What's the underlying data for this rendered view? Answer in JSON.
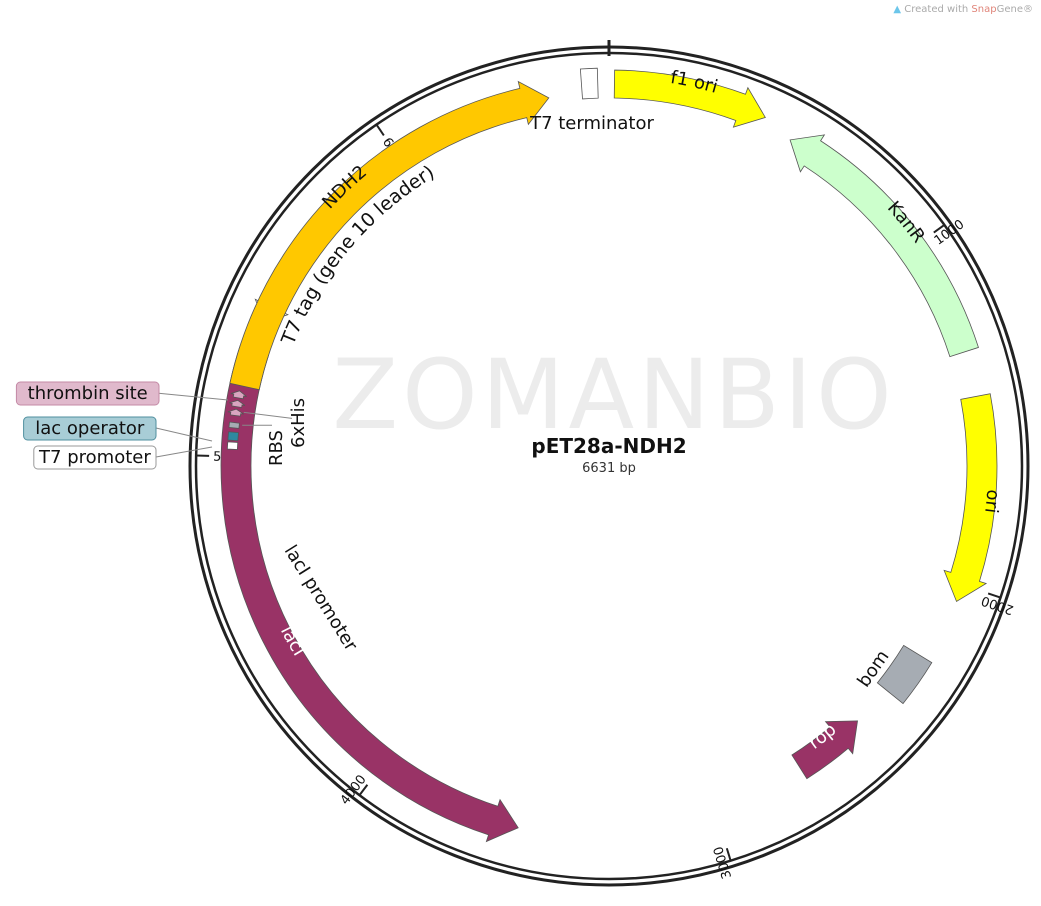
{
  "credit": {
    "prefix": "Created with ",
    "brand_a": "Snap",
    "brand_b": "Gene",
    "mark": "®",
    "icon": "snapgene-logo-icon"
  },
  "watermark": "ZOMANBIO",
  "plasmid": {
    "name": "pET28a-NDH2",
    "length_label": "6631 bp",
    "length_bp": 6631
  },
  "ticks": [
    {
      "bp": 1000,
      "label": "1000"
    },
    {
      "bp": 2000,
      "label": "2000"
    },
    {
      "bp": 3000,
      "label": "3000"
    },
    {
      "bp": 4000,
      "label": "4000"
    },
    {
      "bp": 5000,
      "label": "5000"
    },
    {
      "bp": 6000,
      "label": "6000"
    }
  ],
  "features": [
    {
      "name": "f1 ori",
      "start": 15,
      "end": 445,
      "dir": "cw",
      "color": "#ffff00",
      "label_mode": "arc"
    },
    {
      "name": "KanR",
      "start": 535,
      "end": 1330,
      "dir": "ccw",
      "color": "#ccffcc",
      "label_mode": "arc"
    },
    {
      "name": "ori",
      "start": 1460,
      "end": 2050,
      "dir": "cw",
      "color": "#ffff00",
      "label_mode": "arc"
    },
    {
      "name": "bom",
      "start": 2235,
      "end": 2375,
      "dir": "none",
      "color": "#a6acb3",
      "label_mode": "outside"
    },
    {
      "name": "rop",
      "start": 2500,
      "end": 2720,
      "dir": "ccw",
      "color": "#993366",
      "label_mode": "arc_white"
    },
    {
      "name": "lacI",
      "start": 3575,
      "end": 5305,
      "dir": "ccw",
      "color": "#993366",
      "label_mode": "arc_white"
    },
    {
      "name": "lacI promoter",
      "start": 5390,
      "end": 5470,
      "dir": "ccw",
      "color": "#ffffff",
      "label_mode": "radial"
    },
    {
      "name": "T7 promoter",
      "start": 5020,
      "end": 5040,
      "dir": "none",
      "color": "#ffffff",
      "label_mode": "legend"
    },
    {
      "name": "lac operator",
      "start": 5045,
      "end": 5068,
      "dir": "none",
      "color": "#2e89a0",
      "label_mode": "legend"
    },
    {
      "name": "RBS",
      "start": 5080,
      "end": 5095,
      "dir": "none",
      "color": "#a6acb3",
      "label_mode": "inner"
    },
    {
      "name": "6xHis",
      "start": 5115,
      "end": 5133,
      "dir": "cw",
      "color": "#d9a5c0",
      "label_mode": "inner"
    },
    {
      "name": "thrombin site",
      "start": 5140,
      "end": 5158,
      "dir": "cw",
      "color": "#d9a5c0",
      "label_mode": "legend"
    },
    {
      "name": "T7 tag (gene 10 leader)",
      "start": 5165,
      "end": 5185,
      "dir": "cw",
      "color": "#d9a5c0",
      "label_mode": "arc_inner"
    },
    {
      "name": "NDH2",
      "start": 5200,
      "end": 6460,
      "dir": "cw",
      "color": "#ffc800",
      "label_mode": "arc"
    },
    {
      "name": "T7 terminator",
      "start": 6555,
      "end": 6600,
      "dir": "none",
      "color": "#ffffff",
      "label_mode": "below"
    }
  ],
  "legend": [
    {
      "label": "thrombin site",
      "bg": "#e0b9cc",
      "border": "#c48aa6"
    },
    {
      "label": "lac operator",
      "bg": "#a8cdd6",
      "border": "#4f8f9f"
    },
    {
      "label": "T7 promoter",
      "bg": "#ffffff",
      "border": "#999999"
    }
  ]
}
